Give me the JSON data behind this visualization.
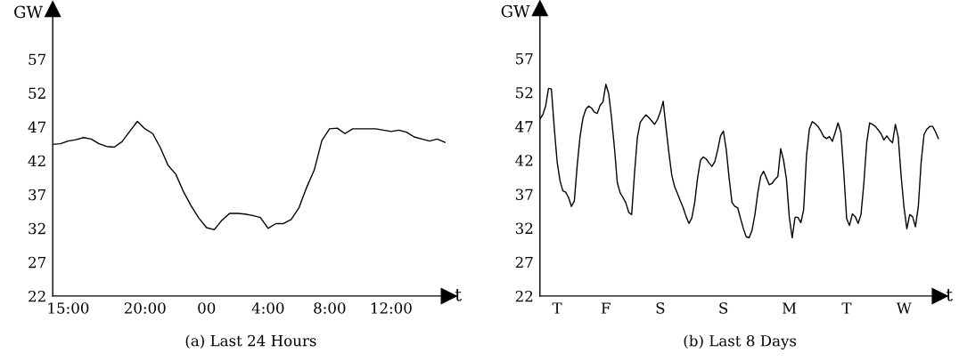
{
  "chart_data": [
    {
      "type": "line",
      "title": "(a) Last 24 Hours",
      "xlabel": "t",
      "ylabel": "GW",
      "ylim": [
        22,
        64.4
      ],
      "categories": [
        null,
        null,
        "15:00",
        null,
        null,
        null,
        null,
        null,
        null,
        null,
        null,
        null,
        "20:00",
        null,
        null,
        null,
        null,
        null,
        null,
        null,
        "00",
        null,
        null,
        null,
        null,
        null,
        null,
        null,
        "4:00",
        null,
        null,
        null,
        null,
        null,
        null,
        null,
        "8:00",
        null,
        null,
        null,
        null,
        null,
        null,
        null,
        "12:00",
        null,
        null,
        null,
        null,
        null,
        null,
        null
      ],
      "yticks": [
        22,
        27,
        32,
        37,
        42,
        47,
        52,
        57
      ],
      "grid": false,
      "marker": "none",
      "line_style": "solid",
      "series": [
        {
          "color": "#000000",
          "values": [
            44.4,
            44.5,
            44.9,
            45.1,
            45.4,
            45.2,
            44.5,
            44.1,
            44.0,
            44.8,
            46.3,
            47.8,
            46.7,
            46.0,
            43.9,
            41.3,
            40.0,
            37.4,
            35.3,
            33.5,
            32.1,
            31.8,
            33.2,
            34.2,
            34.2,
            34.1,
            33.9,
            33.6,
            32.0,
            32.7,
            32.7,
            33.3,
            35.0,
            38.0,
            40.6,
            45.0,
            46.7,
            46.8,
            46.0,
            46.7,
            46.7,
            46.7,
            46.7,
            46.5,
            46.3,
            46.5,
            46.2,
            45.5,
            45.2,
            44.9,
            45.2,
            44.7
          ]
        }
      ]
    },
    {
      "type": "line",
      "title": "(b) Last 8 Days",
      "xlabel": "t",
      "ylabel": "GW",
      "ylim": [
        22,
        64.4
      ],
      "categories": [
        null,
        null,
        null,
        null,
        null,
        null,
        "T",
        null,
        null,
        null,
        null,
        null,
        null,
        null,
        null,
        null,
        null,
        null,
        null,
        null,
        null,
        null,
        null,
        "F",
        null,
        null,
        null,
        null,
        null,
        null,
        null,
        null,
        null,
        null,
        null,
        null,
        null,
        null,
        null,
        null,
        null,
        null,
        "S",
        null,
        null,
        null,
        null,
        null,
        null,
        null,
        null,
        null,
        null,
        null,
        null,
        null,
        null,
        null,
        null,
        null,
        null,
        null,
        null,
        null,
        "S",
        null,
        null,
        null,
        null,
        null,
        null,
        null,
        null,
        null,
        null,
        null,
        null,
        null,
        null,
        null,
        null,
        null,
        null,
        null,
        null,
        null,
        null,
        "M",
        null,
        null,
        null,
        null,
        null,
        null,
        null,
        null,
        null,
        null,
        null,
        null,
        null,
        null,
        null,
        null,
        null,
        null,
        null,
        "T",
        null,
        null,
        null,
        null,
        null,
        null,
        null,
        null,
        null,
        null,
        null,
        null,
        null,
        null,
        null,
        null,
        null,
        null,
        null,
        "W",
        null,
        null,
        null,
        null,
        null,
        null,
        null,
        null,
        null,
        null,
        null,
        null
      ],
      "yticks": [
        22,
        27,
        32,
        37,
        42,
        47,
        52,
        57
      ],
      "grid": false,
      "marker": "none",
      "line_style": "solid",
      "series": [
        {
          "color": "#000000",
          "values": [
            48.1,
            48.7,
            50.0,
            52.6,
            52.5,
            46.8,
            41.8,
            39.0,
            37.5,
            37.3,
            36.5,
            35.2,
            36.0,
            41.2,
            45.5,
            48.2,
            49.5,
            50.0,
            49.7,
            49.1,
            48.9,
            50.1,
            50.6,
            53.2,
            51.8,
            48.2,
            43.8,
            38.7,
            37.2,
            36.5,
            35.7,
            34.3,
            34.0,
            40.1,
            45.4,
            47.6,
            48.2,
            48.7,
            48.3,
            47.8,
            47.3,
            48.0,
            49.1,
            50.7,
            46.8,
            43.1,
            39.8,
            38.1,
            37.1,
            36.0,
            35.0,
            33.7,
            32.7,
            33.5,
            35.8,
            39.4,
            42.0,
            42.5,
            42.2,
            41.6,
            41.1,
            41.8,
            43.5,
            45.6,
            46.3,
            43.6,
            39.4,
            35.8,
            35.2,
            35.0,
            33.4,
            31.9,
            30.7,
            30.6,
            31.7,
            34.0,
            37.2,
            39.6,
            40.4,
            39.4,
            38.4,
            38.6,
            39.2,
            39.6,
            43.7,
            42.0,
            39.2,
            33.6,
            30.6,
            33.6,
            33.6,
            32.8,
            34.7,
            42.7,
            46.6,
            47.7,
            47.4,
            47.0,
            46.3,
            45.5,
            45.2,
            45.5,
            44.8,
            46.1,
            47.5,
            46.1,
            40.2,
            33.4,
            32.4,
            34.1,
            33.7,
            32.7,
            34.0,
            38.6,
            44.6,
            47.5,
            47.3,
            47.0,
            46.5,
            45.9,
            45.0,
            45.6,
            45.0,
            44.6,
            47.3,
            45.4,
            39.7,
            35.1,
            31.9,
            34.0,
            33.7,
            32.2,
            35.2,
            41.8,
            45.8,
            46.6,
            47.0,
            47.0,
            46.2,
            45.2
          ]
        }
      ]
    }
  ]
}
